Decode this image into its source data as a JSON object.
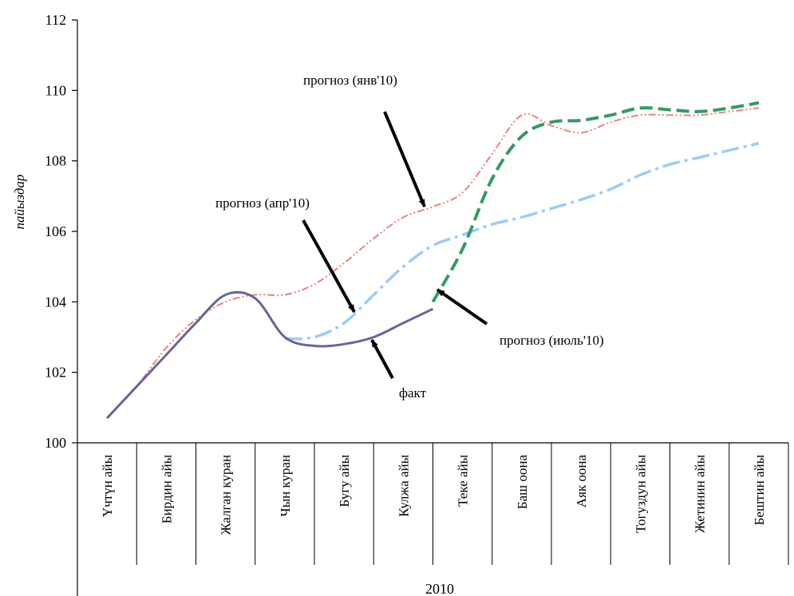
{
  "chart_data": {
    "type": "line",
    "title": "",
    "ylabel": "пайыздар",
    "xlabel": "2010",
    "ylim": [
      100,
      112
    ],
    "yticks": [
      "100",
      "102",
      "104",
      "106",
      "108",
      "110",
      "112"
    ],
    "categories": [
      "Үчтүн айы",
      "Бирдин айы",
      "Жалган куран",
      "Чын куран",
      "Бугу айы",
      "Кулжа айы",
      "Теке айы",
      "Баш оона",
      "Аяк оона",
      "Тогуздун айы",
      "Жетинин айы",
      "Бештин айы"
    ],
    "series": [
      {
        "key": "jan",
        "name": "прогноз (янв'10)",
        "color": "#f08080",
        "x": [
          0,
          0.5,
          1,
          1.5,
          2,
          2.5,
          3,
          3.5,
          4,
          4.5,
          5,
          5.5,
          6,
          6.5,
          7,
          7.5,
          8,
          8.5,
          9,
          9.5,
          10,
          10.5,
          11
        ],
        "values": [
          100.7,
          101.6,
          102.7,
          103.5,
          104.0,
          104.2,
          104.2,
          104.5,
          105.1,
          105.8,
          106.4,
          106.7,
          107.1,
          108.2,
          109.3,
          109.0,
          108.8,
          109.1,
          109.3,
          109.3,
          109.3,
          109.4,
          109.5
        ]
      },
      {
        "key": "apr",
        "name": "прогноз (апр'10)",
        "color": "#99ccff",
        "x": [
          3,
          3.5,
          4,
          4.5,
          5,
          5.5,
          6,
          6.5,
          7,
          7.5,
          8,
          8.5,
          9,
          9.5,
          10,
          10.5,
          11
        ],
        "values": [
          102.95,
          103.0,
          103.4,
          104.2,
          105.0,
          105.6,
          105.9,
          106.2,
          106.4,
          106.65,
          106.9,
          107.2,
          107.6,
          107.9,
          108.1,
          108.3,
          108.5
        ]
      },
      {
        "key": "jul",
        "name": "прогноз (июль'10)",
        "color": "#339966",
        "x": [
          5.5,
          6,
          6.5,
          7,
          7.5,
          8,
          8.5,
          9,
          9.5,
          10,
          10.5,
          11
        ],
        "values": [
          104.0,
          105.5,
          107.5,
          108.7,
          109.1,
          109.15,
          109.3,
          109.5,
          109.45,
          109.4,
          109.5,
          109.65
        ]
      },
      {
        "key": "fact",
        "name": "факт",
        "color": "#666699",
        "x": [
          0,
          0.5,
          1,
          1.5,
          2,
          2.5,
          3,
          3.5,
          4,
          4.5,
          5,
          5.5
        ],
        "values": [
          100.7,
          101.6,
          102.5,
          103.4,
          104.2,
          104.1,
          103.0,
          102.75,
          102.8,
          103.0,
          103.4,
          103.8
        ]
      }
    ],
    "annotations": [
      {
        "key": "jan",
        "text": "прогноз (янв'10)"
      },
      {
        "key": "apr",
        "text": "прогноз (апр'10)"
      },
      {
        "key": "jul",
        "text": "прогноз (июль'10)"
      },
      {
        "key": "fact",
        "text": "факт"
      }
    ],
    "grid": false,
    "legend": "none"
  }
}
